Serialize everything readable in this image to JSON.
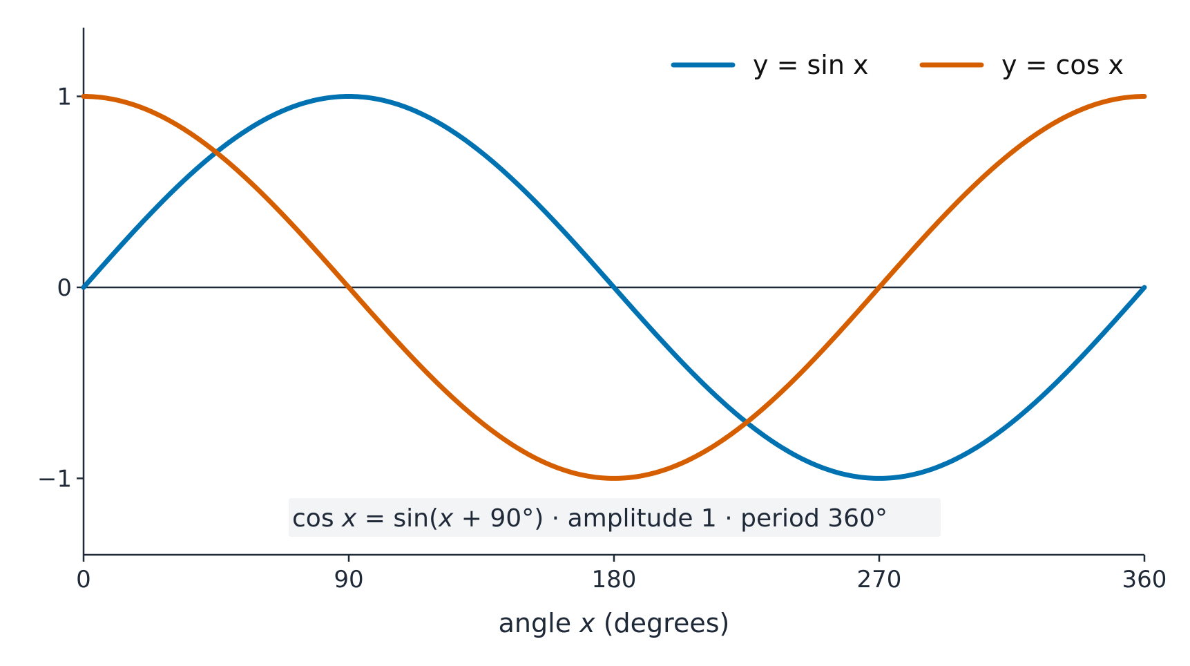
{
  "chart_data": {
    "type": "line",
    "xlabel": "angle x (degrees)",
    "xlabel_parts": [
      "angle ",
      "x",
      " (degrees)"
    ],
    "ylabel": "",
    "xlim": [
      0,
      360
    ],
    "ylim": [
      -1.4,
      1.36
    ],
    "grid": false,
    "legend_position": "top-right",
    "x_ticks": [
      0,
      90,
      180,
      270,
      360
    ],
    "x_tick_labels": [
      "0",
      "90",
      "180",
      "270",
      "360"
    ],
    "y_ticks": [
      -1,
      0,
      1
    ],
    "y_tick_labels": [
      "−1",
      "0",
      "1"
    ],
    "series": [
      {
        "name": "y = sin x",
        "legend_parts": [
          "y",
          " = sin ",
          "x"
        ],
        "color": "#0072b2",
        "function": "sin",
        "x": [
          0,
          15,
          30,
          45,
          60,
          75,
          90,
          105,
          120,
          135,
          150,
          165,
          180,
          195,
          210,
          225,
          240,
          255,
          270,
          285,
          300,
          315,
          330,
          345,
          360
        ],
        "y": [
          0,
          0.259,
          0.5,
          0.707,
          0.866,
          0.966,
          1,
          0.966,
          0.866,
          0.707,
          0.5,
          0.259,
          0,
          -0.259,
          -0.5,
          -0.707,
          -0.866,
          -0.966,
          -1,
          -0.966,
          -0.866,
          -0.707,
          -0.5,
          -0.259,
          0
        ]
      },
      {
        "name": "y = cos x",
        "legend_parts": [
          "y",
          " = cos ",
          "x"
        ],
        "color": "#d55e00",
        "function": "cos",
        "x": [
          0,
          15,
          30,
          45,
          60,
          75,
          90,
          105,
          120,
          135,
          150,
          165,
          180,
          195,
          210,
          225,
          240,
          255,
          270,
          285,
          300,
          315,
          330,
          345,
          360
        ],
        "y": [
          1,
          0.966,
          0.866,
          0.707,
          0.5,
          0.259,
          0,
          -0.259,
          -0.5,
          -0.707,
          -0.866,
          -0.966,
          -1,
          -0.966,
          -0.866,
          -0.707,
          -0.5,
          -0.259,
          0,
          0.259,
          0.5,
          0.707,
          0.866,
          0.966,
          1
        ]
      }
    ],
    "annotation": {
      "text": "cos x = sin(x + 90°)  ·  amplitude 1  ·  period 360°",
      "parts": [
        {
          "text": "cos ",
          "italic": false
        },
        {
          "text": "x",
          "italic": true
        },
        {
          "text": " = sin(",
          "italic": false
        },
        {
          "text": "x",
          "italic": true
        },
        {
          "text": " + 90°)  ·  amplitude 1  ·  period 360°",
          "italic": false
        }
      ],
      "background": "#f3f4f6"
    }
  }
}
